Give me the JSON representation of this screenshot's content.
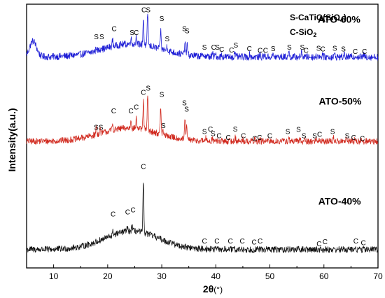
{
  "chart_data": {
    "type": "line",
    "xlabel_main": "2θ",
    "xlabel_unit": "(°)",
    "ylabel": "Intensity(a.u.)",
    "xlim": [
      5,
      70
    ],
    "xticks": [
      10,
      20,
      30,
      40,
      50,
      60,
      70
    ],
    "y_ticks_shown": false,
    "legend": {
      "line1_prefix": "S-CaTiO(SiO",
      "line1_sub": "4",
      "line1_suffix": ")",
      "line2_prefix": "C-SiO",
      "line2_sub": "2"
    },
    "series": [
      {
        "name": "ATO-60%",
        "color": "#1f1fd6",
        "baseline": 0.8,
        "hump": {
          "center": 24.5,
          "width": 7.5,
          "height": 0.05
        },
        "low_angle_bump": {
          "center": 6.2,
          "width": 0.9,
          "height": 0.06
        },
        "noise": 0.013,
        "peaks": [
          [
            17.9,
            0.015
          ],
          [
            18.8,
            0.015
          ],
          [
            20.9,
            0.025
          ],
          [
            24.3,
            0.025
          ],
          [
            25.3,
            0.03
          ],
          [
            26.6,
            0.1
          ],
          [
            27.4,
            0.125
          ],
          [
            29.8,
            0.07
          ],
          [
            31.0,
            0.02
          ],
          [
            34.3,
            0.05
          ],
          [
            34.7,
            0.04
          ],
          [
            37.8,
            0.01
          ],
          [
            39.4,
            0.012
          ],
          [
            40.0,
            0.01
          ],
          [
            41.0,
            0.008
          ],
          [
            43.5,
            0.02
          ],
          [
            46.3,
            0.01
          ],
          [
            48.2,
            0.008
          ],
          [
            49.0,
            0.008
          ],
          [
            50.6,
            0.008
          ],
          [
            53.5,
            0.02
          ],
          [
            55.9,
            0.02
          ],
          [
            58.9,
            0.012
          ],
          [
            59.7,
            0.012
          ],
          [
            62.0,
            0.01
          ],
          [
            63.8,
            0.01
          ],
          [
            65.9,
            0.008
          ],
          [
            67.4,
            0.008
          ]
        ],
        "markers": [
          {
            "label": "S",
            "x": 17.9,
            "y": 0.867
          },
          {
            "label": "S",
            "x": 18.9,
            "y": 0.867
          },
          {
            "label": "C",
            "x": 21.2,
            "y": 0.898
          },
          {
            "label": "S",
            "x": 24.5,
            "y": 0.883
          },
          {
            "label": "C",
            "x": 25.3,
            "y": 0.883
          },
          {
            "label": "C",
            "x": 26.7,
            "y": 0.969
          },
          {
            "label": "S",
            "x": 27.5,
            "y": 0.969
          },
          {
            "label": "S",
            "x": 30.0,
            "y": 0.937
          },
          {
            "label": "S",
            "x": 34.2,
            "y": 0.898
          },
          {
            "label": "S",
            "x": 34.7,
            "y": 0.89
          },
          {
            "label": "S",
            "x": 31.0,
            "y": 0.859
          },
          {
            "label": "S",
            "x": 37.9,
            "y": 0.828
          },
          {
            "label": "C",
            "x": 39.6,
            "y": 0.828
          },
          {
            "label": "S",
            "x": 40.3,
            "y": 0.828
          },
          {
            "label": "C",
            "x": 41.1,
            "y": 0.82
          },
          {
            "label": "S",
            "x": 43.7,
            "y": 0.835
          },
          {
            "label": "C",
            "x": 42.9,
            "y": 0.817
          },
          {
            "label": "C",
            "x": 46.2,
            "y": 0.822
          },
          {
            "label": "C",
            "x": 48.2,
            "y": 0.816
          },
          {
            "label": "C",
            "x": 49.2,
            "y": 0.816
          },
          {
            "label": "S",
            "x": 50.6,
            "y": 0.822
          },
          {
            "label": "S",
            "x": 53.6,
            "y": 0.828
          },
          {
            "label": "S",
            "x": 56.0,
            "y": 0.828
          },
          {
            "label": "C",
            "x": 56.7,
            "y": 0.816
          },
          {
            "label": "S",
            "x": 59.0,
            "y": 0.824
          },
          {
            "label": "C",
            "x": 59.8,
            "y": 0.821
          },
          {
            "label": "S",
            "x": 62.0,
            "y": 0.824
          },
          {
            "label": "S",
            "x": 63.6,
            "y": 0.821
          },
          {
            "label": "C",
            "x": 65.8,
            "y": 0.812
          },
          {
            "label": "C",
            "x": 67.5,
            "y": 0.812
          }
        ],
        "label": "ATO-60%",
        "label_pos": [
          62.8,
          0.93
        ]
      },
      {
        "name": "ATO-50%",
        "color": "#d12a1f",
        "baseline": 0.48,
        "hump": {
          "center": 24.0,
          "width": 7.5,
          "height": 0.05
        },
        "noise": 0.012,
        "peaks": [
          [
            17.9,
            0.03
          ],
          [
            18.6,
            0.02
          ],
          [
            20.9,
            0.025
          ],
          [
            24.3,
            0.035
          ],
          [
            25.3,
            0.04
          ],
          [
            26.6,
            0.11
          ],
          [
            27.4,
            0.14
          ],
          [
            29.8,
            0.1
          ],
          [
            30.2,
            0.015
          ],
          [
            34.3,
            0.08
          ],
          [
            34.6,
            0.045
          ],
          [
            38.1,
            0.012
          ],
          [
            39.4,
            0.015
          ],
          [
            43.6,
            0.015
          ],
          [
            45.0,
            0.01
          ],
          [
            47.2,
            0.008
          ],
          [
            48.2,
            0.008
          ],
          [
            53.5,
            0.012
          ],
          [
            55.6,
            0.012
          ],
          [
            56.5,
            0.01
          ],
          [
            58.6,
            0.01
          ],
          [
            59.2,
            0.01
          ],
          [
            61.8,
            0.015
          ],
          [
            64.1,
            0.008
          ],
          [
            65.7,
            0.008
          ],
          [
            67.1,
            0.008
          ]
        ],
        "markers": [
          {
            "label": "SS",
            "x": 18.3,
            "y": 0.524
          },
          {
            "label": "C",
            "x": 21.1,
            "y": 0.586
          },
          {
            "label": "C",
            "x": 24.3,
            "y": 0.586
          },
          {
            "label": "C",
            "x": 25.3,
            "y": 0.601
          },
          {
            "label": "C",
            "x": 26.6,
            "y": 0.656
          },
          {
            "label": "S",
            "x": 27.5,
            "y": 0.672
          },
          {
            "label": "S",
            "x": 30.0,
            "y": 0.648
          },
          {
            "label": "S",
            "x": 30.3,
            "y": 0.531
          },
          {
            "label": "S",
            "x": 34.2,
            "y": 0.617
          },
          {
            "label": "S",
            "x": 34.6,
            "y": 0.593
          },
          {
            "label": "S",
            "x": 37.9,
            "y": 0.508
          },
          {
            "label": "C",
            "x": 39.0,
            "y": 0.517
          },
          {
            "label": "S",
            "x": 39.5,
            "y": 0.5
          },
          {
            "label": "C",
            "x": 40.6,
            "y": 0.492
          },
          {
            "label": "S",
            "x": 43.6,
            "y": 0.517
          },
          {
            "label": "C",
            "x": 42.3,
            "y": 0.485
          },
          {
            "label": "C",
            "x": 45.1,
            "y": 0.492
          },
          {
            "label": "C",
            "x": 47.2,
            "y": 0.481
          },
          {
            "label": "C",
            "x": 48.1,
            "y": 0.485
          },
          {
            "label": "C",
            "x": 50.0,
            "y": 0.492
          },
          {
            "label": "S",
            "x": 53.3,
            "y": 0.508
          },
          {
            "label": "S",
            "x": 55.3,
            "y": 0.516
          },
          {
            "label": "S",
            "x": 56.3,
            "y": 0.492
          },
          {
            "label": "S",
            "x": 58.3,
            "y": 0.492
          },
          {
            "label": "C",
            "x": 59.2,
            "y": 0.498
          },
          {
            "label": "S",
            "x": 61.6,
            "y": 0.508
          },
          {
            "label": "S",
            "x": 64.3,
            "y": 0.492
          },
          {
            "label": "C",
            "x": 65.5,
            "y": 0.485
          },
          {
            "label": "C",
            "x": 67.1,
            "y": 0.481
          }
        ],
        "label": "ATO-50%",
        "label_pos": [
          63.0,
          0.62
        ]
      },
      {
        "name": "ATO-40%",
        "color": "#111111",
        "baseline": 0.07,
        "hump": {
          "center": 24.5,
          "width": 7.0,
          "height": 0.07
        },
        "noise": 0.012,
        "peaks": [
          [
            21.0,
            0.015
          ],
          [
            23.6,
            0.015
          ],
          [
            24.5,
            0.02
          ],
          [
            26.6,
            0.19
          ],
          [
            31.7,
            0.01
          ],
          [
            37.9,
            0.005
          ]
        ],
        "markers": [
          {
            "label": "C",
            "x": 21.0,
            "y": 0.195
          },
          {
            "label": "C",
            "x": 23.7,
            "y": 0.203
          },
          {
            "label": "C",
            "x": 24.7,
            "y": 0.211
          },
          {
            "label": "C",
            "x": 26.6,
            "y": 0.375
          },
          {
            "label": "C",
            "x": 37.9,
            "y": 0.093
          },
          {
            "label": "C",
            "x": 40.2,
            "y": 0.093
          },
          {
            "label": "C",
            "x": 42.7,
            "y": 0.093
          },
          {
            "label": "C",
            "x": 44.9,
            "y": 0.093
          },
          {
            "label": "C",
            "x": 47.1,
            "y": 0.089
          },
          {
            "label": "C",
            "x": 48.2,
            "y": 0.093
          },
          {
            "label": "C",
            "x": 59.1,
            "y": 0.082
          },
          {
            "label": "C",
            "x": 60.2,
            "y": 0.09
          },
          {
            "label": "C",
            "x": 65.9,
            "y": 0.093
          },
          {
            "label": "C",
            "x": 67.3,
            "y": 0.086
          }
        ],
        "label": "ATO-40%",
        "label_pos": [
          62.9,
          0.24
        ]
      }
    ]
  }
}
